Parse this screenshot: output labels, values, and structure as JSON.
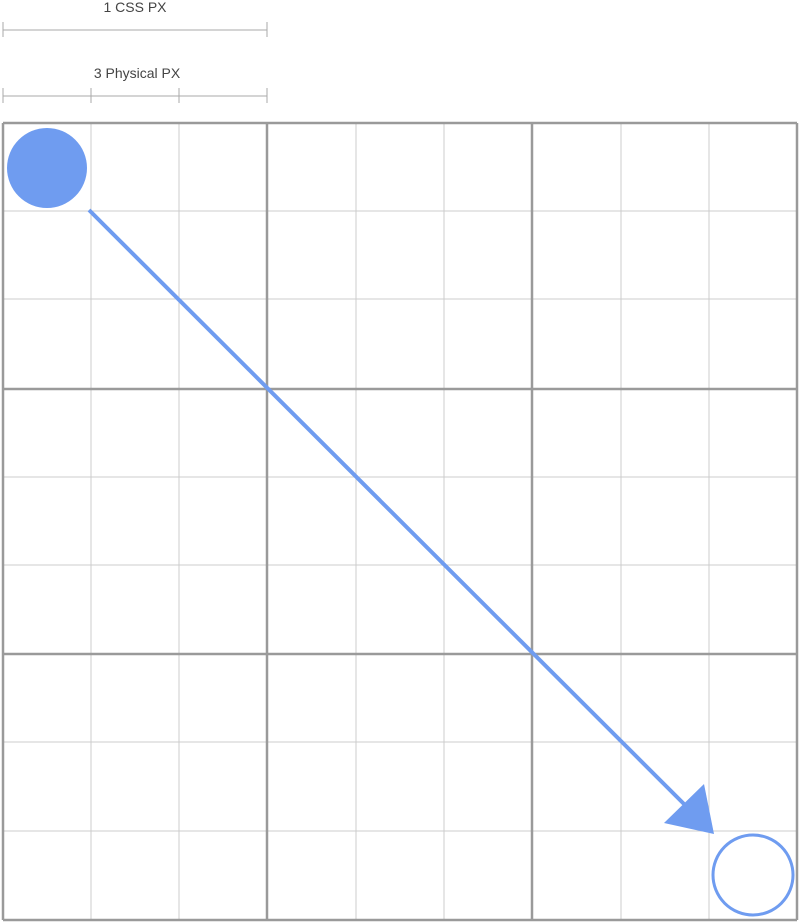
{
  "scale": {
    "css_px_label": "1 CSS PX",
    "physical_px_label": "3 Physical PX"
  },
  "grid": {
    "css_cells": 3,
    "physical_per_css": 3
  },
  "colors": {
    "accent": "#6f9cf0",
    "grid_major": "#9a9a9a",
    "grid_minor": "#cccccc",
    "scale_line": "#aaaaaa",
    "label_text": "#444444"
  },
  "markers": {
    "start": "filled-circle",
    "end": "outlined-circle",
    "connector": "arrow"
  }
}
